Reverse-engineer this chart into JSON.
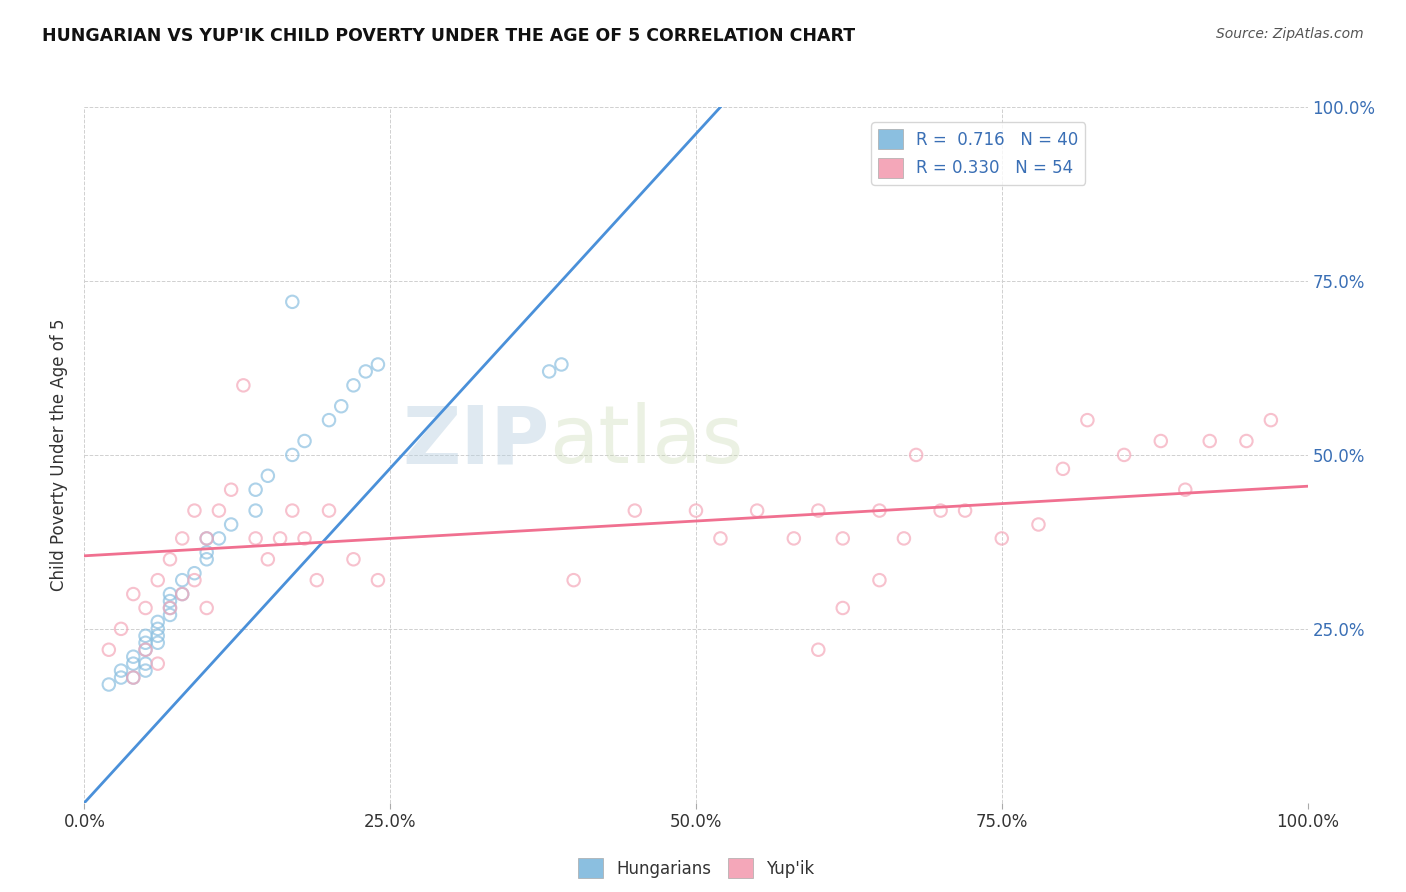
{
  "title": "HUNGARIAN VS YUP'IK CHILD POVERTY UNDER THE AGE OF 5 CORRELATION CHART",
  "source": "Source: ZipAtlas.com",
  "ylabel": "Child Poverty Under the Age of 5",
  "xlim": [
    0.0,
    1.0
  ],
  "ylim": [
    0.0,
    1.0
  ],
  "xtick_labels": [
    "0.0%",
    "25.0%",
    "50.0%",
    "75.0%",
    "100.0%"
  ],
  "xtick_vals": [
    0.0,
    0.25,
    0.5,
    0.75,
    1.0
  ],
  "ytick_right_labels": [
    "25.0%",
    "50.0%",
    "75.0%",
    "100.0%"
  ],
  "ytick_right_vals": [
    0.25,
    0.5,
    0.75,
    1.0
  ],
  "hungarian_color": "#8bbfe0",
  "yupik_color": "#f4a7b9",
  "hungarian_line_color": "#4a90d9",
  "yupik_line_color": "#f07090",
  "legend_r1": "R =  0.716",
  "legend_n1": "N = 40",
  "legend_r2": "R = 0.330",
  "legend_n2": "N = 54",
  "watermark_zip": "ZIP",
  "watermark_atlas": "atlas",
  "background_color": "#ffffff",
  "hun_line_x0": 0.0,
  "hun_line_y0": 0.0,
  "hun_line_x1": 0.52,
  "hun_line_y1": 1.0,
  "yup_line_x0": 0.0,
  "yup_line_y0": 0.355,
  "yup_line_x1": 1.0,
  "yup_line_y1": 0.455,
  "hungarian_x": [
    0.02,
    0.03,
    0.03,
    0.04,
    0.04,
    0.04,
    0.05,
    0.05,
    0.05,
    0.05,
    0.05,
    0.06,
    0.06,
    0.06,
    0.06,
    0.07,
    0.07,
    0.07,
    0.07,
    0.08,
    0.08,
    0.09,
    0.1,
    0.1,
    0.1,
    0.11,
    0.12,
    0.14,
    0.14,
    0.15,
    0.17,
    0.18,
    0.2,
    0.21,
    0.22,
    0.23,
    0.24,
    0.38,
    0.39,
    0.17
  ],
  "hungarian_y": [
    0.17,
    0.18,
    0.19,
    0.18,
    0.2,
    0.21,
    0.19,
    0.2,
    0.22,
    0.23,
    0.24,
    0.23,
    0.24,
    0.25,
    0.26,
    0.27,
    0.28,
    0.29,
    0.3,
    0.3,
    0.32,
    0.33,
    0.35,
    0.36,
    0.38,
    0.38,
    0.4,
    0.42,
    0.45,
    0.47,
    0.5,
    0.52,
    0.55,
    0.57,
    0.6,
    0.62,
    0.63,
    0.62,
    0.63,
    0.72
  ],
  "yupik_x": [
    0.02,
    0.03,
    0.04,
    0.04,
    0.05,
    0.05,
    0.06,
    0.06,
    0.07,
    0.07,
    0.08,
    0.08,
    0.09,
    0.09,
    0.1,
    0.1,
    0.11,
    0.12,
    0.13,
    0.14,
    0.15,
    0.16,
    0.17,
    0.18,
    0.19,
    0.2,
    0.22,
    0.24,
    0.4,
    0.45,
    0.5,
    0.52,
    0.55,
    0.58,
    0.6,
    0.62,
    0.65,
    0.67,
    0.7,
    0.72,
    0.75,
    0.78,
    0.8,
    0.82,
    0.85,
    0.88,
    0.9,
    0.92,
    0.95,
    0.97,
    0.6,
    0.62,
    0.65,
    0.68
  ],
  "yupik_y": [
    0.22,
    0.25,
    0.18,
    0.3,
    0.22,
    0.28,
    0.2,
    0.32,
    0.28,
    0.35,
    0.3,
    0.38,
    0.32,
    0.42,
    0.28,
    0.38,
    0.42,
    0.45,
    0.6,
    0.38,
    0.35,
    0.38,
    0.42,
    0.38,
    0.32,
    0.42,
    0.35,
    0.32,
    0.32,
    0.42,
    0.42,
    0.38,
    0.42,
    0.38,
    0.42,
    0.38,
    0.42,
    0.38,
    0.42,
    0.42,
    0.38,
    0.4,
    0.48,
    0.55,
    0.5,
    0.52,
    0.45,
    0.52,
    0.52,
    0.55,
    0.22,
    0.28,
    0.32,
    0.5
  ]
}
